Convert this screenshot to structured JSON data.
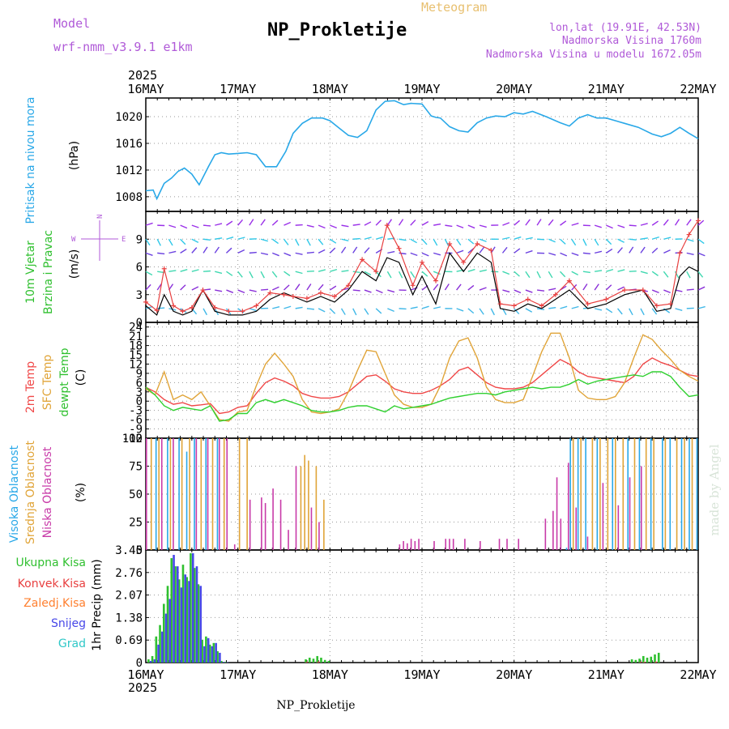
{
  "header": {
    "model_label": "Model",
    "model_name": "wrf-nmm_v3.9.1 e1km",
    "title": "NP_Prokletije",
    "subtitle": "Meteogram",
    "coords": "lon,lat (19.91E, 42.53N)",
    "elevation": "Nadmorska Visina 1760m",
    "model_elevation": "Nadmorska Visina u modelu 1672.05m",
    "footer": "NP_Prokletije",
    "credit": "made by Angel",
    "year": "2025"
  },
  "time_axis": {
    "ticks": [
      "16MAY",
      "17MAY",
      "18MAY",
      "19MAY",
      "20MAY",
      "21MAY",
      "22MAY"
    ],
    "year_label": "2025"
  },
  "colors": {
    "pressure": "#29a8e8",
    "temp2m": "#f04848",
    "sfc": "#e0a438",
    "dewpt": "#30d030",
    "wind_obs": "#e84040",
    "wind_line": "#000000",
    "cloud_high": "#29a8e8",
    "cloud_mid": "#e0a438",
    "cloud_low": "#c83aa8",
    "precip_total": "#30c030",
    "precip_conv": "#e84040",
    "precip_frozen": "#ff8030",
    "precip_snow": "#4848e8",
    "precip_hail": "#30c8c8",
    "panel_labels": "#8a46c8"
  },
  "panels": {
    "pressure": {
      "ylabel1": "Pritisak na nivou mora",
      "ylabel2": "(hPa)"
    },
    "wind": {
      "ylabel1": "10m Vjetar",
      "ylabel2": "Brzina i Pravac",
      "ylabel3": "(m/s)",
      "compass_w": "W",
      "compass_e": "E",
      "compass_n": "N"
    },
    "temp": {
      "ylabel1": "2m Temp",
      "ylabel2": "SFC Temp",
      "ylabel3": "dewpt Temp",
      "ylabel4": "(C)"
    },
    "cloud": {
      "ylabel1": "Visoka Oblacnost",
      "ylabel2": "Srednja Oblacnost",
      "ylabel3": "Niska Oblacnost",
      "ylabel4": "(%)"
    },
    "precip": {
      "ylabel1": "Ukupna Kisa",
      "ylabel2": "Konvek.Kisa",
      "ylabel3": "Zaledj.Kisa",
      "ylabel4": "Snijeg",
      "ylabel5": "Grad",
      "ylabel6": "1hr Precip (mm)"
    }
  },
  "chart_data": [
    {
      "type": "line",
      "title": "Pritisak na nivou mora",
      "ylabel": "(hPa)",
      "yticks": [
        "1008",
        "1012",
        "1016",
        "1020"
      ],
      "ylim": [
        1005.8,
        1022.8
      ],
      "x_days": [
        0,
        0.08,
        0.12,
        0.2,
        0.28,
        0.35,
        0.42,
        0.5,
        0.58,
        0.68,
        0.75,
        0.82,
        0.9,
        1.0,
        1.1,
        1.2,
        1.3,
        1.42,
        1.52,
        1.6,
        1.7,
        1.8,
        1.92,
        2.0,
        2.1,
        2.2,
        2.3,
        2.4,
        2.5,
        2.6,
        2.7,
        2.8,
        2.88,
        3.0,
        3.1,
        3.15,
        3.2,
        3.3,
        3.4,
        3.5,
        3.6,
        3.7,
        3.8,
        3.9,
        4.0,
        4.1,
        4.2,
        4.35,
        4.5,
        4.6,
        4.7,
        4.8,
        4.9,
        5.0,
        5.1,
        5.2,
        5.35,
        5.5,
        5.6,
        5.7,
        5.8,
        5.9,
        6.0
      ],
      "values": [
        1008.9,
        1009.0,
        1007.7,
        1010.0,
        1010.8,
        1011.8,
        1012.3,
        1011.4,
        1009.8,
        1012.5,
        1014.3,
        1014.6,
        1014.4,
        1014.5,
        1014.6,
        1014.3,
        1012.5,
        1012.5,
        1014.8,
        1017.5,
        1019.0,
        1019.8,
        1019.8,
        1019.4,
        1018.3,
        1017.2,
        1016.9,
        1017.9,
        1021.0,
        1022.3,
        1022.4,
        1021.8,
        1022.0,
        1021.9,
        1020.1,
        1019.9,
        1019.8,
        1018.5,
        1017.9,
        1017.7,
        1019.1,
        1019.8,
        1020.1,
        1020.0,
        1020.6,
        1020.4,
        1020.8,
        1020.0,
        1019.1,
        1018.6,
        1019.8,
        1020.3,
        1019.8,
        1019.8,
        1019.4,
        1019.0,
        1018.4,
        1017.4,
        1017.0,
        1017.5,
        1018.4,
        1017.5,
        1016.7
      ],
      "grid": true
    },
    {
      "type": "line",
      "title": "10m Vjetar Brzina i Pravac",
      "ylabel": "(m/s)",
      "yticks": [
        "0",
        "3",
        "6",
        "9"
      ],
      "ylim": [
        0,
        12
      ],
      "x_days": [
        0,
        0.12,
        0.2,
        0.3,
        0.4,
        0.5,
        0.62,
        0.75,
        0.9,
        1.05,
        1.2,
        1.35,
        1.5,
        1.6,
        1.75,
        1.9,
        2.05,
        2.2,
        2.35,
        2.5,
        2.62,
        2.75,
        2.9,
        3.0,
        3.15,
        3.3,
        3.45,
        3.6,
        3.75,
        3.85,
        4.0,
        4.15,
        4.3,
        4.45,
        4.6,
        4.8,
        5.0,
        5.2,
        5.4,
        5.55,
        5.7,
        5.8,
        5.9,
        6.0
      ],
      "series": [
        {
          "name": "10m Vjetar",
          "values": [
            2.2,
            1.3,
            5.8,
            1.8,
            1.2,
            1.6,
            3.5,
            1.6,
            1.2,
            1.2,
            1.8,
            3.2,
            3.0,
            2.8,
            2.6,
            3.2,
            2.8,
            4.0,
            6.8,
            5.5,
            10.5,
            8.0,
            4.0,
            6.5,
            4.5,
            8.5,
            6.5,
            8.5,
            7.8,
            2.0,
            1.8,
            2.5,
            1.8,
            3.0,
            4.5,
            2.0,
            2.5,
            3.5,
            3.5,
            1.8,
            2.0,
            7.5,
            9.5,
            11.0
          ]
        },
        {
          "name": "",
          "values": [
            1.8,
            0.8,
            3.0,
            1.2,
            0.8,
            1.2,
            3.5,
            1.2,
            0.8,
            0.8,
            1.2,
            2.5,
            3.2,
            2.8,
            2.2,
            2.8,
            2.2,
            3.5,
            5.5,
            4.5,
            7.0,
            6.5,
            3.0,
            5.0,
            2.0,
            7.5,
            5.5,
            7.5,
            6.5,
            1.5,
            1.2,
            2.0,
            1.5,
            2.5,
            3.5,
            1.5,
            2.0,
            3.0,
            3.5,
            1.2,
            1.5,
            5.0,
            6.0,
            5.5
          ]
        }
      ],
      "grid": true
    },
    {
      "type": "line",
      "title": "2m Temp / SFC Temp / dewpt Temp",
      "ylabel": "(C)",
      "yticks": [
        "-12",
        "-9",
        "-6",
        "-3",
        "0",
        "3",
        "6",
        "9",
        "12",
        "15",
        "18",
        "21",
        "24"
      ],
      "ylim": [
        -12,
        25.5
      ],
      "x_days": [
        0,
        0.1,
        0.2,
        0.3,
        0.4,
        0.5,
        0.6,
        0.7,
        0.8,
        0.9,
        1.0,
        1.1,
        1.2,
        1.3,
        1.4,
        1.5,
        1.6,
        1.7,
        1.8,
        1.9,
        2.0,
        2.1,
        2.2,
        2.3,
        2.4,
        2.5,
        2.6,
        2.7,
        2.8,
        2.9,
        3.0,
        3.1,
        3.2,
        3.3,
        3.4,
        3.5,
        3.6,
        3.7,
        3.8,
        3.9,
        4.0,
        4.1,
        4.2,
        4.3,
        4.4,
        4.5,
        4.6,
        4.7,
        4.8,
        4.9,
        5.0,
        5.1,
        5.2,
        5.3,
        5.4,
        5.5,
        5.6,
        5.7,
        5.8,
        5.9,
        6.0
      ],
      "series": [
        {
          "name": "2m Temp",
          "values": [
            4.5,
            3.0,
            0.5,
            -1.0,
            -0.5,
            -1.5,
            -1.2,
            -0.8,
            -4.0,
            -3.5,
            -2.0,
            -1.5,
            2.5,
            6.0,
            7.5,
            6.5,
            5.0,
            2.5,
            1.5,
            1.0,
            1.0,
            1.5,
            3.0,
            5.5,
            8.0,
            8.5,
            6.5,
            4.0,
            3.0,
            2.5,
            2.5,
            3.5,
            5.0,
            7.0,
            10.0,
            11.0,
            8.5,
            6.0,
            4.5,
            4.0,
            4.0,
            4.5,
            6.0,
            8.5,
            11.0,
            13.5,
            12.0,
            9.5,
            8.0,
            7.5,
            7.0,
            6.5,
            6.0,
            8.0,
            12.0,
            14.0,
            12.5,
            11.5,
            10.0,
            8.5,
            8.0
          ]
        },
        {
          "name": "SFC Temp",
          "values": [
            4.0,
            2.0,
            9.5,
            0.5,
            2.0,
            0.5,
            3.0,
            -1.5,
            -6.0,
            -6.5,
            -3.5,
            -3.0,
            5.0,
            12.0,
            15.5,
            12.0,
            8.0,
            0.5,
            -3.5,
            -4.0,
            -3.5,
            -2.5,
            3.0,
            10.0,
            16.5,
            16.0,
            9.0,
            2.0,
            -1.0,
            -2.0,
            -2.0,
            -1.0,
            5.0,
            14.0,
            19.5,
            20.5,
            14.0,
            4.5,
            0.5,
            -0.5,
            -0.5,
            0.5,
            8.0,
            16.0,
            22.0,
            22.0,
            14.0,
            3.5,
            1.0,
            0.5,
            0.5,
            1.5,
            6.0,
            14.0,
            21.5,
            20.0,
            16.5,
            13.5,
            10.0,
            8.0,
            6.5
          ]
        },
        {
          "name": "dewpt Temp",
          "values": [
            4.5,
            2.0,
            -1.5,
            -3.0,
            -2.0,
            -2.5,
            -3.0,
            -1.5,
            -6.5,
            -6.0,
            -4.0,
            -4.0,
            -0.5,
            0.5,
            -0.5,
            0.5,
            -0.5,
            -1.5,
            -3.0,
            -3.5,
            -3.5,
            -3.0,
            -2.0,
            -1.5,
            -1.5,
            -2.5,
            -3.5,
            -1.5,
            -2.5,
            -2.0,
            -1.5,
            -1.0,
            0.0,
            1.0,
            1.5,
            2.0,
            2.5,
            2.5,
            2.0,
            3.0,
            3.5,
            4.0,
            4.5,
            4.0,
            4.5,
            4.5,
            5.5,
            7.0,
            5.5,
            6.5,
            7.0,
            7.5,
            8.0,
            8.5,
            8.0,
            9.5,
            9.5,
            8.0,
            4.5,
            1.5,
            2.0
          ]
        }
      ],
      "grid": true
    },
    {
      "type": "bar",
      "title": "Visoka / Srednja / Niska Oblacnost",
      "ylabel": "(%)",
      "yticks": [
        "0",
        "25",
        "50",
        "75",
        "100"
      ],
      "ylim": [
        0,
        100
      ],
      "series": [
        {
          "name": "Visoka Oblacnost",
          "x_hours": [
            2,
            5,
            8,
            10,
            12,
            15,
            18,
            109,
            110,
            112,
            114,
            117,
            121,
            125,
            128,
            131,
            134,
            136,
            139,
            141,
            143
          ],
          "values": [
            100,
            100,
            100,
            88,
            100,
            100,
            100,
            2,
            100,
            100,
            100,
            100,
            100,
            100,
            100,
            100,
            100,
            100,
            100,
            100,
            100
          ]
        },
        {
          "name": "Srednja Oblacnost",
          "x_hours": [
            1,
            3,
            6,
            9,
            11,
            14,
            17,
            20,
            24,
            26,
            40,
            41,
            42,
            44,
            46,
            111,
            113,
            116,
            118,
            120,
            122,
            124,
            127,
            130,
            132,
            135,
            138,
            140,
            142
          ],
          "values": [
            100,
            100,
            100,
            100,
            100,
            100,
            100,
            100,
            100,
            100,
            75,
            85,
            80,
            75,
            45,
            100,
            100,
            100,
            100,
            100,
            100,
            100,
            100,
            100,
            100,
            100,
            100,
            100,
            100
          ]
        },
        {
          "name": "Niska Oblacnost",
          "x_hours": [
            0,
            4,
            7,
            13,
            16,
            19,
            21,
            23,
            27,
            30,
            31,
            33,
            35,
            37,
            39,
            43,
            45,
            66,
            67,
            68,
            69,
            70,
            71,
            75,
            78,
            79,
            80,
            83,
            87,
            92,
            94,
            97,
            104,
            106,
            107,
            108,
            110,
            112,
            115,
            119,
            123,
            126,
            129
          ],
          "values": [
            100,
            100,
            100,
            100,
            100,
            100,
            100,
            5,
            45,
            47,
            42,
            55,
            45,
            18,
            75,
            38,
            25,
            5,
            8,
            6,
            10,
            8,
            10,
            8,
            10,
            10,
            10,
            10,
            8,
            10,
            10,
            10,
            28,
            35,
            65,
            28,
            78,
            38,
            12,
            60,
            40,
            65,
            75
          ]
        }
      ],
      "grid": true
    },
    {
      "type": "bar",
      "title": "1hr Precip",
      "ylabel": "1hr Precip (mm)",
      "yticks": [
        "0",
        "0.69",
        "1.38",
        "2.07",
        "2.76",
        "3.45"
      ],
      "ylim": [
        0,
        3.45
      ],
      "x_hours": [
        1,
        2,
        3,
        4,
        5,
        6,
        7,
        8,
        9,
        10,
        11,
        12,
        13,
        14,
        15,
        16,
        17,
        18,
        19,
        20,
        21,
        42,
        43,
        44,
        45,
        46,
        47,
        48,
        127,
        128,
        129,
        130,
        131,
        132,
        133,
        134
      ],
      "series": [
        {
          "name": "Ukupna Kisa",
          "values": [
            0.1,
            0.2,
            0.8,
            1.15,
            1.8,
            2.35,
            3.2,
            2.95,
            2.55,
            3.0,
            2.62,
            3.35,
            2.9,
            2.4,
            0.7,
            0.8,
            0.55,
            0.6,
            0.35,
            0.05,
            0.02,
            0.1,
            0.15,
            0.12,
            0.2,
            0.15,
            0.08,
            0.05,
            0.1,
            0.08,
            0.12,
            0.2,
            0.15,
            0.18,
            0.25,
            0.3
          ]
        },
        {
          "name": "Konvek.Kisa",
          "values": [
            0,
            0,
            0,
            0,
            0,
            0,
            0,
            0,
            0,
            0,
            0,
            0,
            0,
            0,
            0,
            0,
            0,
            0,
            0,
            0,
            0,
            0.02,
            0,
            0,
            0.03,
            0,
            0,
            0,
            0,
            0,
            0.02,
            0.02,
            0,
            0,
            0.03,
            0
          ]
        },
        {
          "name": "Zaledj.Kisa",
          "values": [
            0,
            0,
            0,
            0,
            0,
            0,
            0,
            0,
            0,
            0,
            0,
            0,
            0,
            0,
            0,
            0,
            0,
            0,
            0,
            0,
            0,
            0,
            0,
            0,
            0,
            0,
            0,
            0,
            0,
            0,
            0,
            0,
            0,
            0,
            0,
            0
          ]
        },
        {
          "name": "Snijeg",
          "values": [
            0.05,
            0.1,
            0.55,
            0.95,
            1.5,
            1.95,
            3.3,
            2.95,
            2.3,
            2.7,
            2.5,
            3.35,
            2.95,
            2.35,
            0.5,
            0.75,
            0.5,
            0.6,
            0.3,
            0.02,
            0.01,
            0,
            0,
            0,
            0,
            0,
            0,
            0,
            0,
            0,
            0,
            0,
            0,
            0,
            0,
            0
          ]
        },
        {
          "name": "Grad",
          "values": [
            0,
            0,
            0,
            0,
            0,
            0,
            0,
            0,
            0,
            0,
            0,
            0,
            0,
            0,
            0,
            0,
            0,
            0,
            0,
            0,
            0,
            0,
            0,
            0,
            0,
            0,
            0,
            0,
            0,
            0,
            0,
            0,
            0,
            0,
            0,
            0
          ]
        }
      ],
      "grid": true
    }
  ]
}
